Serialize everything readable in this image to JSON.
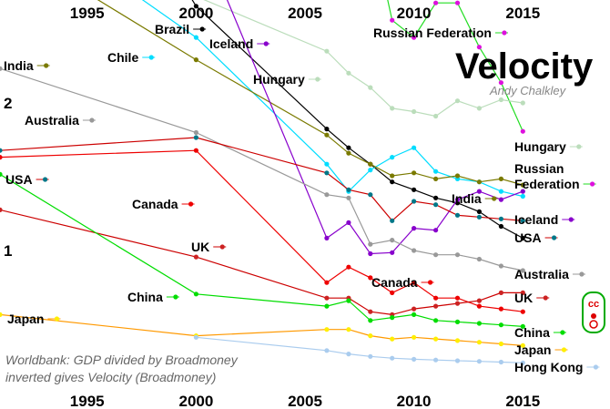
{
  "chart_data": {
    "type": "line",
    "title": "Velocity",
    "subtitle": "Andy Chalkley",
    "note_lines": [
      "Worldbank: GDP divided by Broadmoney",
      "inverted gives Velocity (Broadmoney)"
    ],
    "x_ticks": [
      "1995",
      "2000",
      "2005",
      "2010",
      "2015"
    ],
    "y_ticks": [
      "2",
      "1"
    ],
    "xlim": [
      1991,
      2019
    ],
    "ylog": true,
    "grid": false,
    "license_badge": "cc",
    "series": [
      {
        "name": "Russian Federation",
        "color": "#22dd22",
        "marker_color": "#dd11dd",
        "x": [
          2007,
          2007.5,
          2008,
          2009,
          2010,
          2011,
          2012,
          2013,
          2014,
          2015
        ],
        "y": [
          4.35,
          3.6,
          4.7,
          2.95,
          2.72,
          3.2,
          3.2,
          2.6,
          2.2,
          1.75
        ]
      },
      {
        "name": "Hungary",
        "color": "#bbddbb",
        "marker_color": "#bbddbb",
        "x": [
          2000,
          2006,
          2007,
          2008,
          2009,
          2010,
          2011,
          2012,
          2013,
          2014,
          2015
        ],
        "y": [
          3.3,
          2.55,
          2.3,
          2.15,
          1.95,
          1.92,
          1.88,
          2.02,
          1.95,
          2.03,
          2.0
        ]
      },
      {
        "name": "Brazil",
        "color": "#000000",
        "marker_color": "#000000",
        "x": [
          1997,
          2000,
          2006,
          2007,
          2008,
          2009,
          2010,
          2011,
          2012,
          2013,
          2014,
          2015
        ],
        "y": [
          5.2,
          3.15,
          1.77,
          1.62,
          1.5,
          1.38,
          1.33,
          1.28,
          1.25,
          1.2,
          1.12,
          1.06
        ]
      },
      {
        "name": "Chile",
        "color": "#00ddff",
        "marker_color": "#00ddff",
        "x": [
          1991,
          2000,
          2006,
          2007,
          2008,
          2009,
          2010,
          2011,
          2012,
          2013,
          2014,
          2015
        ],
        "y": [
          5.2,
          2.72,
          1.5,
          1.32,
          1.46,
          1.55,
          1.62,
          1.45,
          1.4,
          1.38,
          1.32,
          1.29
        ]
      },
      {
        "name": "India",
        "color": "#7a7a00",
        "marker_color": "#7a7a00",
        "x": [
          1991,
          2000,
          2006,
          2007,
          2008,
          2009,
          2010,
          2011,
          2012,
          2013,
          2014,
          2015
        ],
        "y": [
          4.3,
          2.45,
          1.72,
          1.58,
          1.5,
          1.42,
          1.44,
          1.4,
          1.42,
          1.38,
          1.4,
          1.36
        ]
      },
      {
        "name": "Iceland",
        "color": "#8800cc",
        "marker_color": "#8800cc",
        "x": [
          2000,
          2006,
          2007,
          2008,
          2009,
          2010,
          2011,
          2012,
          2013,
          2014,
          2015
        ],
        "y": [
          4.6,
          1.06,
          1.14,
          0.985,
          0.99,
          1.11,
          1.1,
          1.27,
          1.32,
          1.27,
          1.32
        ]
      },
      {
        "name": "Australia",
        "color": "#999999",
        "marker_color": "#999999",
        "x": [
          1991,
          2000,
          2006,
          2007,
          2008,
          2009,
          2010,
          2011,
          2012,
          2013,
          2014,
          2015
        ],
        "y": [
          2.35,
          1.74,
          1.3,
          1.28,
          1.03,
          1.05,
          1.0,
          0.98,
          0.98,
          0.96,
          0.93,
          0.91
        ]
      },
      {
        "name": "USA",
        "color": "#cc0000",
        "marker_color": "#007788",
        "x": [
          1991,
          2000,
          2006,
          2007,
          2008,
          2009,
          2010,
          2011,
          2012,
          2013,
          2014,
          2015
        ],
        "y": [
          1.6,
          1.7,
          1.44,
          1.33,
          1.3,
          1.15,
          1.26,
          1.24,
          1.18,
          1.17,
          1.16,
          1.15
        ]
      },
      {
        "name": "Canada",
        "color": "#ee0000",
        "marker_color": "#ee0000",
        "x": [
          1991,
          2000,
          2006,
          2007,
          2008,
          2009,
          2010,
          2011,
          2012,
          2013,
          2014,
          2015
        ],
        "y": [
          1.55,
          1.6,
          0.86,
          0.925,
          0.88,
          0.82,
          0.86,
          0.8,
          0.8,
          0.77,
          0.76,
          0.75
        ]
      },
      {
        "name": "UK",
        "color": "#cc0000",
        "marker_color": "#cc2222",
        "x": [
          1991,
          2000,
          2006,
          2007,
          2008,
          2009,
          2010,
          2011,
          2012,
          2013,
          2014,
          2015
        ],
        "y": [
          1.21,
          0.97,
          0.8,
          0.8,
          0.75,
          0.74,
          0.76,
          0.77,
          0.78,
          0.79,
          0.82,
          0.82
        ]
      },
      {
        "name": "China",
        "color": "#00dd00",
        "marker_color": "#00dd00",
        "x": [
          1991,
          2000,
          2006,
          2007,
          2008,
          2009,
          2010,
          2011,
          2012,
          2013,
          2014,
          2015
        ],
        "y": [
          1.43,
          0.815,
          0.77,
          0.79,
          0.72,
          0.73,
          0.74,
          0.72,
          0.715,
          0.71,
          0.705,
          0.7
        ]
      },
      {
        "name": "Japan",
        "color": "#ff9900",
        "marker_color": "#ffee00",
        "x": [
          1991,
          2000,
          2006,
          2007,
          2008,
          2009,
          2010,
          2011,
          2012,
          2013,
          2014,
          2015
        ],
        "y": [
          0.74,
          0.67,
          0.69,
          0.69,
          0.67,
          0.66,
          0.665,
          0.66,
          0.655,
          0.65,
          0.645,
          0.64
        ]
      },
      {
        "name": "Hong Kong",
        "color": "#aaccee",
        "marker_color": "#aaccee",
        "x": [
          2000,
          2006,
          2007,
          2008,
          2009,
          2010,
          2011,
          2012,
          2013,
          2014,
          2015
        ],
        "y": [
          0.665,
          0.625,
          0.615,
          0.608,
          0.603,
          0.6,
          0.598,
          0.596,
          0.594,
          0.592,
          0.59
        ]
      }
    ],
    "labels": [
      {
        "series": "Russian Federation",
        "text": "Russian Federation"
      },
      {
        "series": "Brazil",
        "text": "Brazil"
      },
      {
        "series": "Iceland",
        "text": "Iceland"
      },
      {
        "series": "India",
        "text": "India"
      },
      {
        "series": "Chile",
        "text": "Chile"
      },
      {
        "series": "Hungary",
        "text": "Hungary"
      },
      {
        "series": "Australia",
        "text": "Australia"
      },
      {
        "series": "USA",
        "text": "USA"
      },
      {
        "series": "Canada",
        "text": "Canada"
      },
      {
        "series": "UK",
        "text": "UK"
      },
      {
        "series": "China",
        "text": "China"
      },
      {
        "series": "Japan",
        "text": "Japan"
      },
      {
        "series": "Hungary",
        "text": "Hungary"
      },
      {
        "series": "Russian Federation",
        "text": "Russian"
      },
      {
        "series": "Russian Federation",
        "text": "Federation"
      },
      {
        "series": "India",
        "text": "India"
      },
      {
        "series": "Iceland",
        "text": "Iceland"
      },
      {
        "series": "USA",
        "text": "USA"
      },
      {
        "series": "Australia",
        "text": "Australia"
      },
      {
        "series": "Canada",
        "text": "Canada"
      },
      {
        "series": "UK",
        "text": "UK"
      },
      {
        "series": "China",
        "text": "China"
      },
      {
        "series": "Japan",
        "text": "Japan"
      },
      {
        "series": "Hong Kong",
        "text": "Hong Kong"
      }
    ]
  }
}
